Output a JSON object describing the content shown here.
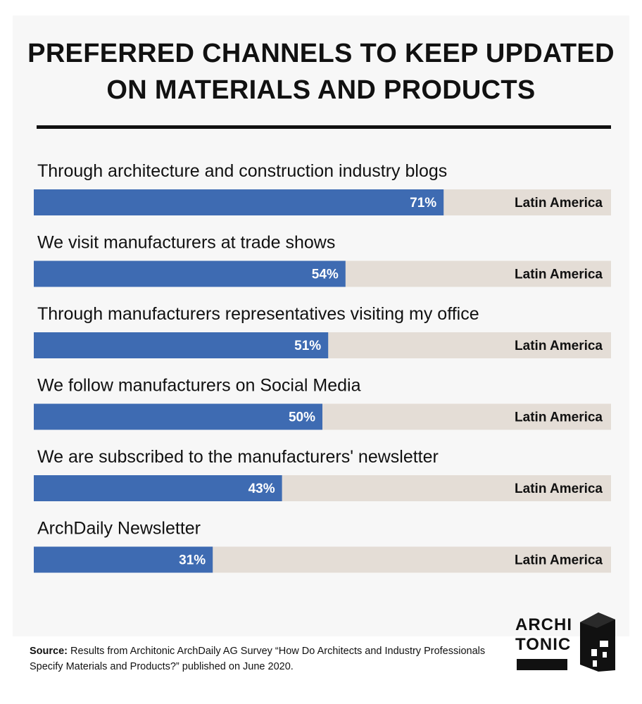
{
  "title_line1": "PREFERRED CHANNELS TO KEEP UPDATED",
  "title_line2": "ON MATERIALS AND PRODUCTS",
  "source_label": "Source:",
  "source_text": " Results from Architonic ArchDaily AG Survey “How Do Architects and Industry Professionals Specify Materials and Products?” published on June 2020.",
  "logo": {
    "line1": "ARCHI",
    "line2": "TONIC",
    "icon": "building-logo-icon"
  },
  "colors": {
    "bar": "#3e6bb2",
    "track": "#e4ddd6",
    "text": "#111111",
    "value_text": "#ffffff"
  },
  "chart_data": {
    "type": "bar",
    "orientation": "horizontal",
    "title": "PREFERRED CHANNELS TO KEEP UPDATED ON MATERIALS AND PRODUCTS",
    "categories": [
      "Through architecture and construction industry blogs",
      "We visit manufacturers at trade shows",
      "Through manufacturers representatives visiting my office",
      "We follow manufacturers on Social Media",
      "We are subscribed to the manufacturers' newsletter",
      "ArchDaily Newsletter"
    ],
    "series": [
      {
        "name": "Latin America",
        "values": [
          71,
          54,
          51,
          50,
          43,
          31
        ]
      }
    ],
    "value_labels": [
      "71%",
      "54%",
      "51%",
      "50%",
      "43%",
      "31%"
    ],
    "xlim": [
      0,
      100
    ],
    "unit": "%",
    "grid": false
  }
}
